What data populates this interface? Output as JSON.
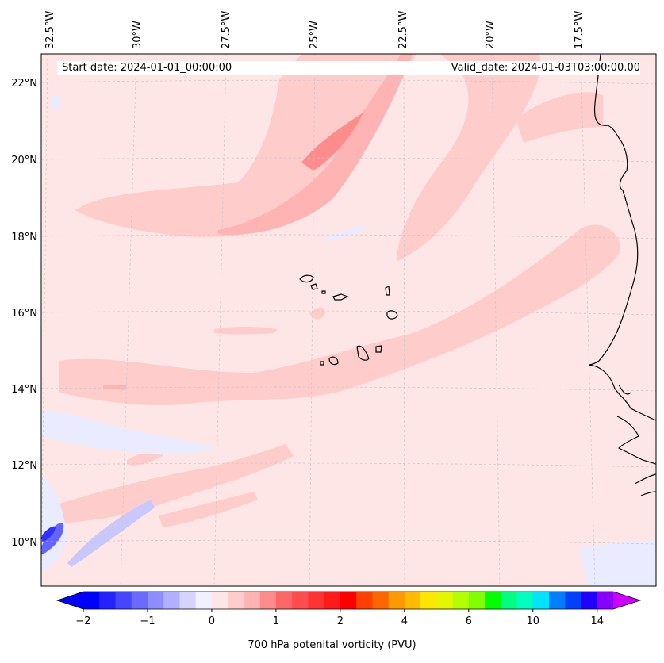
{
  "header": {
    "start_date": "Start date: 2024-01-01_00:00:00",
    "valid_date": "Valid_date: 2024-01-03T03:00:00.00"
  },
  "map": {
    "projection": "lambert-conformal",
    "region": "Eastern tropical North Atlantic, Cape Verde islands and West African coast",
    "lon_labels": [
      "32.5°W",
      "30°W",
      "27.5°W",
      "25°W",
      "22.5°W",
      "20°W",
      "17.5°W"
    ],
    "lat_labels": [
      "22°N",
      "20°N",
      "18°N",
      "16°N",
      "14°N",
      "12°N",
      "10°N"
    ],
    "colors": {
      "background_field": "#ffe6e6",
      "light_pink": "#ffcccc",
      "pink": "#ffb3b3",
      "deep_pink": "#ff8c8c",
      "pale_blue": "#ebebff",
      "light_blue": "#c8c8ff",
      "blue": "#6464ff",
      "coastline": "#000000",
      "gridline": "#c8c8c8"
    }
  },
  "colorbar": {
    "label": "700 hPa potenital vorticity (PVU)",
    "tick_labels": [
      "−2",
      "−1",
      "0",
      "1",
      "2",
      "4",
      "6",
      "10",
      "14"
    ],
    "colors": [
      "#0000ff",
      "#2323ff",
      "#4646ff",
      "#6a6aff",
      "#8d8dff",
      "#b0b0ff",
      "#d4d4ff",
      "#f0f0ff",
      "#ffe6e6",
      "#ffcccc",
      "#ffb3b3",
      "#ff8c8c",
      "#ff6666",
      "#ff4d4d",
      "#ff3333",
      "#ff1a1a",
      "#ff0000",
      "#ff4000",
      "#ff6600",
      "#ff9900",
      "#ffbb00",
      "#ffe600",
      "#e6f500",
      "#b3ff00",
      "#7fff00",
      "#00ff00",
      "#00ff80",
      "#00ffbf",
      "#00e5ff",
      "#0080ff",
      "#0040ff",
      "#2200ff",
      "#8800ff"
    ],
    "extend_low_color": "#0000ff",
    "extend_high_color": "#cc00ff"
  }
}
